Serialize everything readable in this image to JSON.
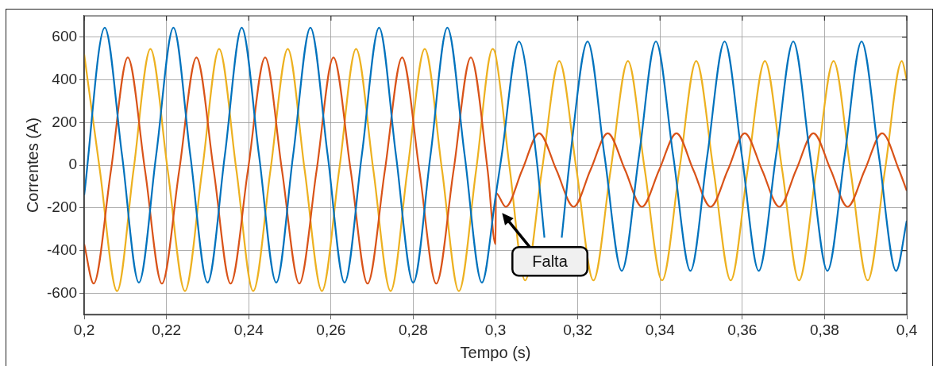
{
  "chart_data": {
    "type": "line",
    "xlabel": "Tempo (s)",
    "ylabel": "Correntes (A)",
    "xlim": [
      0.2,
      0.4
    ],
    "xticks": [
      {
        "value": 0.2,
        "label": "0,2"
      },
      {
        "value": 0.22,
        "label": "0,22"
      },
      {
        "value": 0.24,
        "label": "0,24"
      },
      {
        "value": 0.26,
        "label": "0,26"
      },
      {
        "value": 0.28,
        "label": "0,28"
      },
      {
        "value": 0.3,
        "label": "0,3"
      },
      {
        "value": 0.32,
        "label": "0,32"
      },
      {
        "value": 0.34,
        "label": "0,34"
      },
      {
        "value": 0.36,
        "label": "0,36"
      },
      {
        "value": 0.38,
        "label": "0,38"
      },
      {
        "value": 0.4,
        "label": "0,4"
      }
    ],
    "ylim": [
      -700,
      700
    ],
    "yticks": [
      -600,
      -400,
      -200,
      0,
      200,
      400,
      600
    ],
    "grid": true,
    "legend": false,
    "marker": "none",
    "line_style": "solid",
    "annotations": [
      "Falta"
    ],
    "series": [
      {
        "color": "#0072bd",
        "x": [
          0.2,
          0.205,
          0.2092,
          0.2133,
          0.2175,
          0.2217,
          0.2258,
          0.23,
          0.2342,
          0.2383,
          0.2425,
          0.2467,
          0.2508,
          0.255,
          0.2592,
          0.2633,
          0.2675,
          0.2717,
          0.2758,
          0.28,
          0.2842,
          0.2883,
          0.2925,
          0.2967,
          0.3,
          0.3015,
          0.3057,
          0.3099,
          0.3119,
          0.314,
          0.3161,
          0.3182,
          0.3224,
          0.3265,
          0.3307,
          0.3349,
          0.339,
          0.3432,
          0.3474,
          0.3515,
          0.3557,
          0.3599,
          0.364,
          0.3682,
          0.3724,
          0.3765,
          0.3807,
          0.3849,
          0.389,
          0.3932,
          0.3974,
          0.4
        ],
        "values": [
          -140,
          645,
          47,
          -550,
          47,
          645,
          47,
          -550,
          47,
          645,
          47,
          -550,
          47,
          645,
          47,
          -550,
          47,
          645,
          47,
          -550,
          47,
          645,
          47,
          -550,
          -150,
          45,
          580,
          45,
          -340,
          null,
          -340,
          45,
          580,
          45,
          -495,
          45,
          580,
          45,
          -495,
          45,
          580,
          45,
          -495,
          45,
          580,
          45,
          -495,
          45,
          580,
          45,
          -495,
          -260
        ]
      },
      {
        "color": "#d95319",
        "x": [
          0.2,
          0.2023,
          0.2065,
          0.2106,
          0.2148,
          0.2189,
          0.2231,
          0.2273,
          0.2315,
          0.2356,
          0.2398,
          0.244,
          0.2481,
          0.2523,
          0.2565,
          0.2606,
          0.2648,
          0.2689,
          0.2731,
          0.2773,
          0.2815,
          0.2856,
          0.2898,
          0.294,
          0.2981,
          0.3,
          0.3001,
          0.3025,
          0.3065,
          0.3106,
          0.3148,
          0.319,
          0.3231,
          0.3273,
          0.3315,
          0.3356,
          0.3398,
          0.344,
          0.3481,
          0.3523,
          0.3565,
          0.3606,
          0.3648,
          0.369,
          0.3731,
          0.3773,
          0.3815,
          0.3856,
          0.3898,
          0.394,
          0.3981,
          0.4
        ],
        "values": [
          -370,
          -555,
          -25,
          505,
          -25,
          -555,
          -25,
          505,
          -25,
          -555,
          -25,
          505,
          -25,
          -555,
          -25,
          505,
          -25,
          -555,
          -25,
          505,
          -25,
          -555,
          -25,
          505,
          -25,
          -370,
          -130,
          -195,
          -22,
          150,
          -22,
          -195,
          -22,
          150,
          -22,
          -195,
          -22,
          150,
          -22,
          -195,
          -22,
          150,
          -22,
          -195,
          -22,
          150,
          -22,
          -195,
          -22,
          150,
          -22,
          -120
        ]
      },
      {
        "color": "#edb120",
        "x": [
          0.2,
          0.2038,
          0.208,
          0.212,
          0.2161,
          0.2203,
          0.2245,
          0.2287,
          0.2328,
          0.237,
          0.2411,
          0.2453,
          0.2495,
          0.2536,
          0.2578,
          0.262,
          0.2661,
          0.2703,
          0.2745,
          0.2786,
          0.2828,
          0.287,
          0.2911,
          0.2953,
          0.2993,
          0.3,
          0.3035,
          0.3072,
          0.3113,
          0.3155,
          0.3197,
          0.3238,
          0.328,
          0.3322,
          0.3363,
          0.3405,
          0.3447,
          0.3488,
          0.353,
          0.3572,
          0.3613,
          0.3655,
          0.3697,
          0.3738,
          0.378,
          0.3822,
          0.3863,
          0.3905,
          0.3947,
          0.3988,
          0.4
        ],
        "values": [
          520,
          -22,
          -590,
          -22,
          545,
          -22,
          -590,
          -22,
          545,
          -22,
          -590,
          -22,
          545,
          -22,
          -590,
          -22,
          545,
          -22,
          -590,
          -22,
          545,
          -22,
          -590,
          -22,
          545,
          520,
          -22,
          -540,
          -22,
          488,
          -22,
          -540,
          -22,
          488,
          -22,
          -540,
          -22,
          488,
          -22,
          -540,
          -22,
          488,
          -22,
          -540,
          -22,
          488,
          -22,
          -540,
          -22,
          488,
          400
        ]
      }
    ]
  }
}
